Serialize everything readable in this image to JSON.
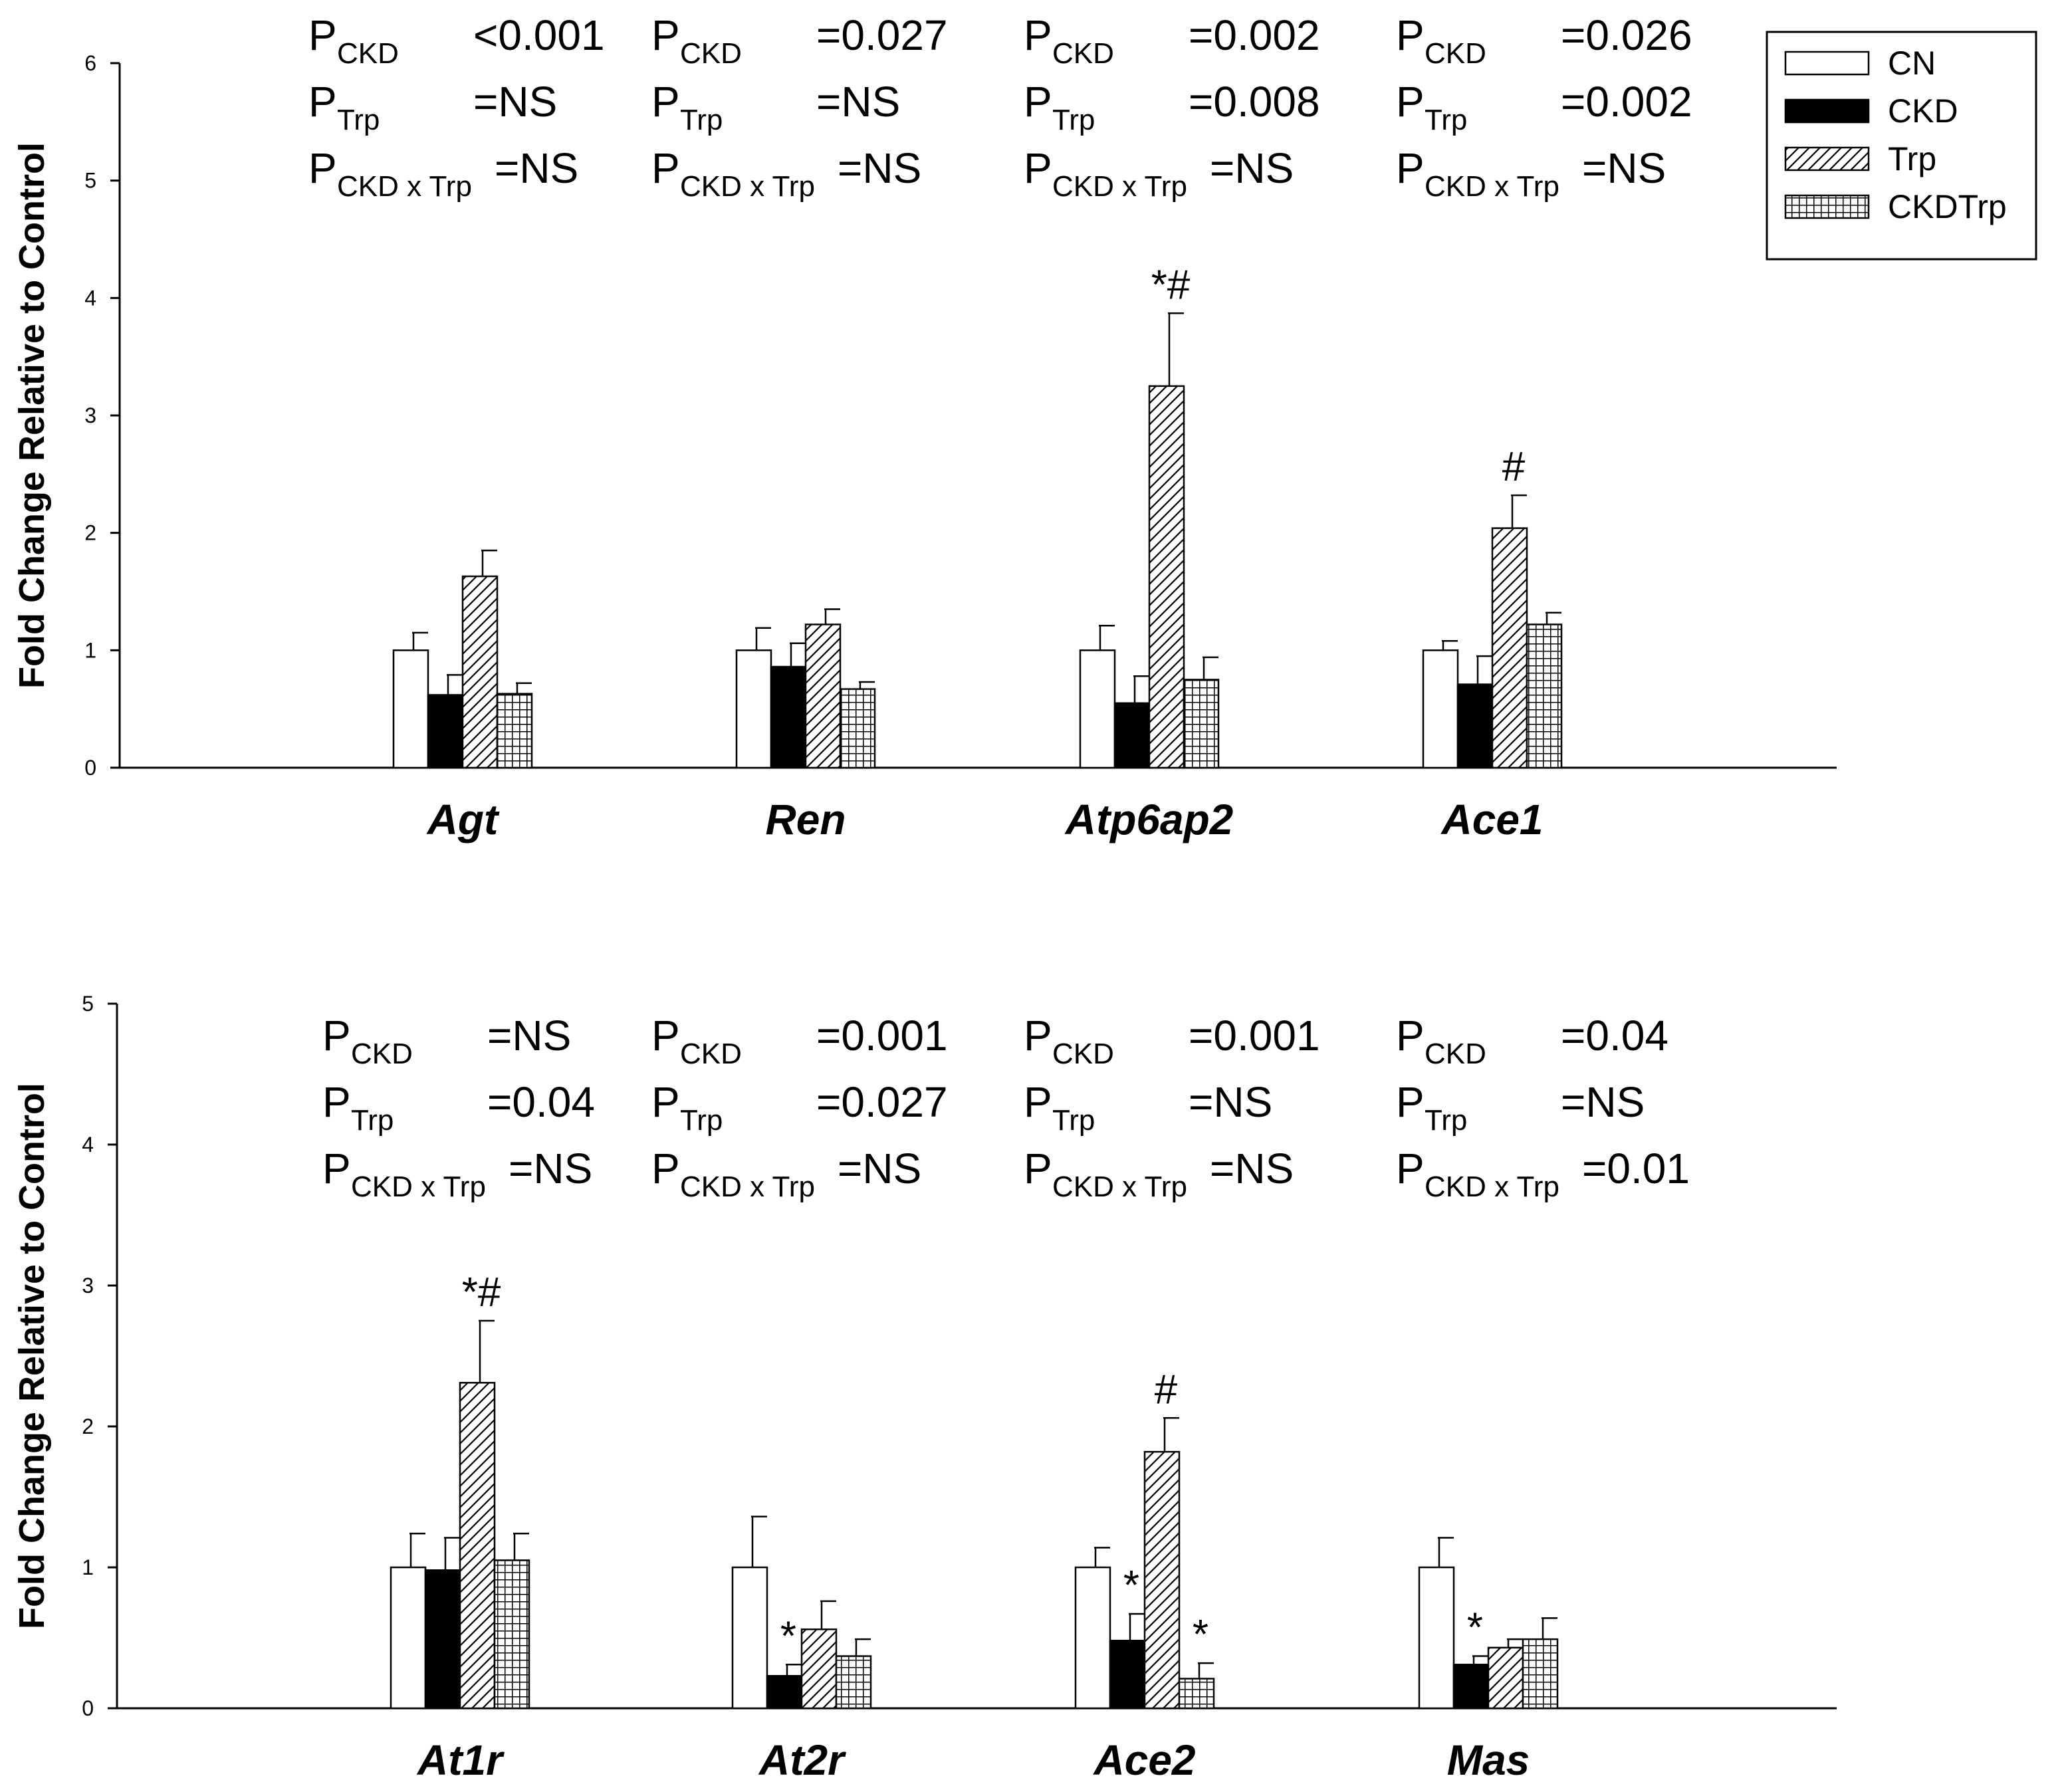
{
  "chart_data": [
    {
      "type": "bar",
      "panel": "top",
      "ylabel": "Fold Change Relative to Control",
      "ylim": [
        0,
        6
      ],
      "yticks": [
        "0",
        "1",
        "2",
        "3",
        "4",
        "5",
        "6"
      ],
      "categories": [
        "Agt",
        "Ren",
        "Atp6ap2",
        "Ace1"
      ],
      "series": [
        {
          "name": "CN",
          "values": [
            1.0,
            1.0,
            1.0,
            1.0
          ],
          "errors": [
            0.15,
            0.19,
            0.21,
            0.08
          ]
        },
        {
          "name": "CKD",
          "values": [
            0.62,
            0.86,
            0.55,
            0.71
          ],
          "errors": [
            0.17,
            0.2,
            0.23,
            0.24
          ]
        },
        {
          "name": "Trp",
          "values": [
            1.63,
            1.22,
            3.25,
            2.04
          ],
          "errors": [
            0.22,
            0.13,
            0.62,
            0.28
          ]
        },
        {
          "name": "CKDTrp",
          "values": [
            0.63,
            0.67,
            0.75,
            1.22
          ],
          "errors": [
            0.09,
            0.06,
            0.19,
            0.1
          ]
        }
      ],
      "annotations": [
        {
          "category": 2,
          "series": 2,
          "text": "*#"
        },
        {
          "category": 3,
          "series": 2,
          "text": "#"
        }
      ],
      "stats": [
        {
          "p_ckd": "<0.001",
          "p_trp": "=NS",
          "p_int": "=NS"
        },
        {
          "p_ckd": "=0.027",
          "p_trp": "=NS",
          "p_int": "=NS"
        },
        {
          "p_ckd": "=0.002",
          "p_trp": "=0.008",
          "p_int": "=NS"
        },
        {
          "p_ckd": "=0.026",
          "p_trp": "=0.002",
          "p_int": "=NS"
        }
      ]
    },
    {
      "type": "bar",
      "panel": "bottom",
      "ylabel": "Fold Change Relative to Control",
      "ylim": [
        0,
        5
      ],
      "yticks": [
        "0",
        "1",
        "2",
        "3",
        "4",
        "5"
      ],
      "categories": [
        "At1r",
        "At2r",
        "Ace2",
        "Mas"
      ],
      "series": [
        {
          "name": "CN",
          "values": [
            1.0,
            1.0,
            1.0,
            1.0
          ],
          "errors": [
            0.24,
            0.36,
            0.14,
            0.21
          ]
        },
        {
          "name": "CKD",
          "values": [
            0.98,
            0.23,
            0.48,
            0.31
          ],
          "errors": [
            0.23,
            0.08,
            0.19,
            0.06
          ]
        },
        {
          "name": "Trp",
          "values": [
            2.31,
            0.56,
            1.82,
            0.43
          ],
          "errors": [
            0.44,
            0.2,
            0.24,
            0.06
          ]
        },
        {
          "name": "CKDTrp",
          "values": [
            1.05,
            0.37,
            0.21,
            0.49
          ],
          "errors": [
            0.19,
            0.12,
            0.11,
            0.15
          ]
        }
      ],
      "annotations": [
        {
          "category": 0,
          "series": 2,
          "text": "*#"
        },
        {
          "category": 1,
          "series": 1,
          "text": "*"
        },
        {
          "category": 2,
          "series": 1,
          "text": "*"
        },
        {
          "category": 2,
          "series": 2,
          "text": "#"
        },
        {
          "category": 2,
          "series": 3,
          "text": "*"
        },
        {
          "category": 3,
          "series": 1,
          "text": "*"
        }
      ],
      "stats": [
        {
          "p_ckd": "=NS",
          "p_trp": "=0.04",
          "p_int": "=NS"
        },
        {
          "p_ckd": "=0.001",
          "p_trp": "=0.027",
          "p_int": "=NS"
        },
        {
          "p_ckd": "=0.001",
          "p_trp": "=NS",
          "p_int": "=NS"
        },
        {
          "p_ckd": "=0.04",
          "p_trp": "=NS",
          "p_int": "=0.01"
        }
      ]
    }
  ],
  "stat_labels": {
    "p": "P",
    "ckd_sub": "CKD",
    "trp_sub": "Trp",
    "int_sub": "CKD x Trp"
  },
  "legend": {
    "entries": [
      "CN",
      "CKD",
      "Trp",
      "CKDTrp"
    ]
  }
}
